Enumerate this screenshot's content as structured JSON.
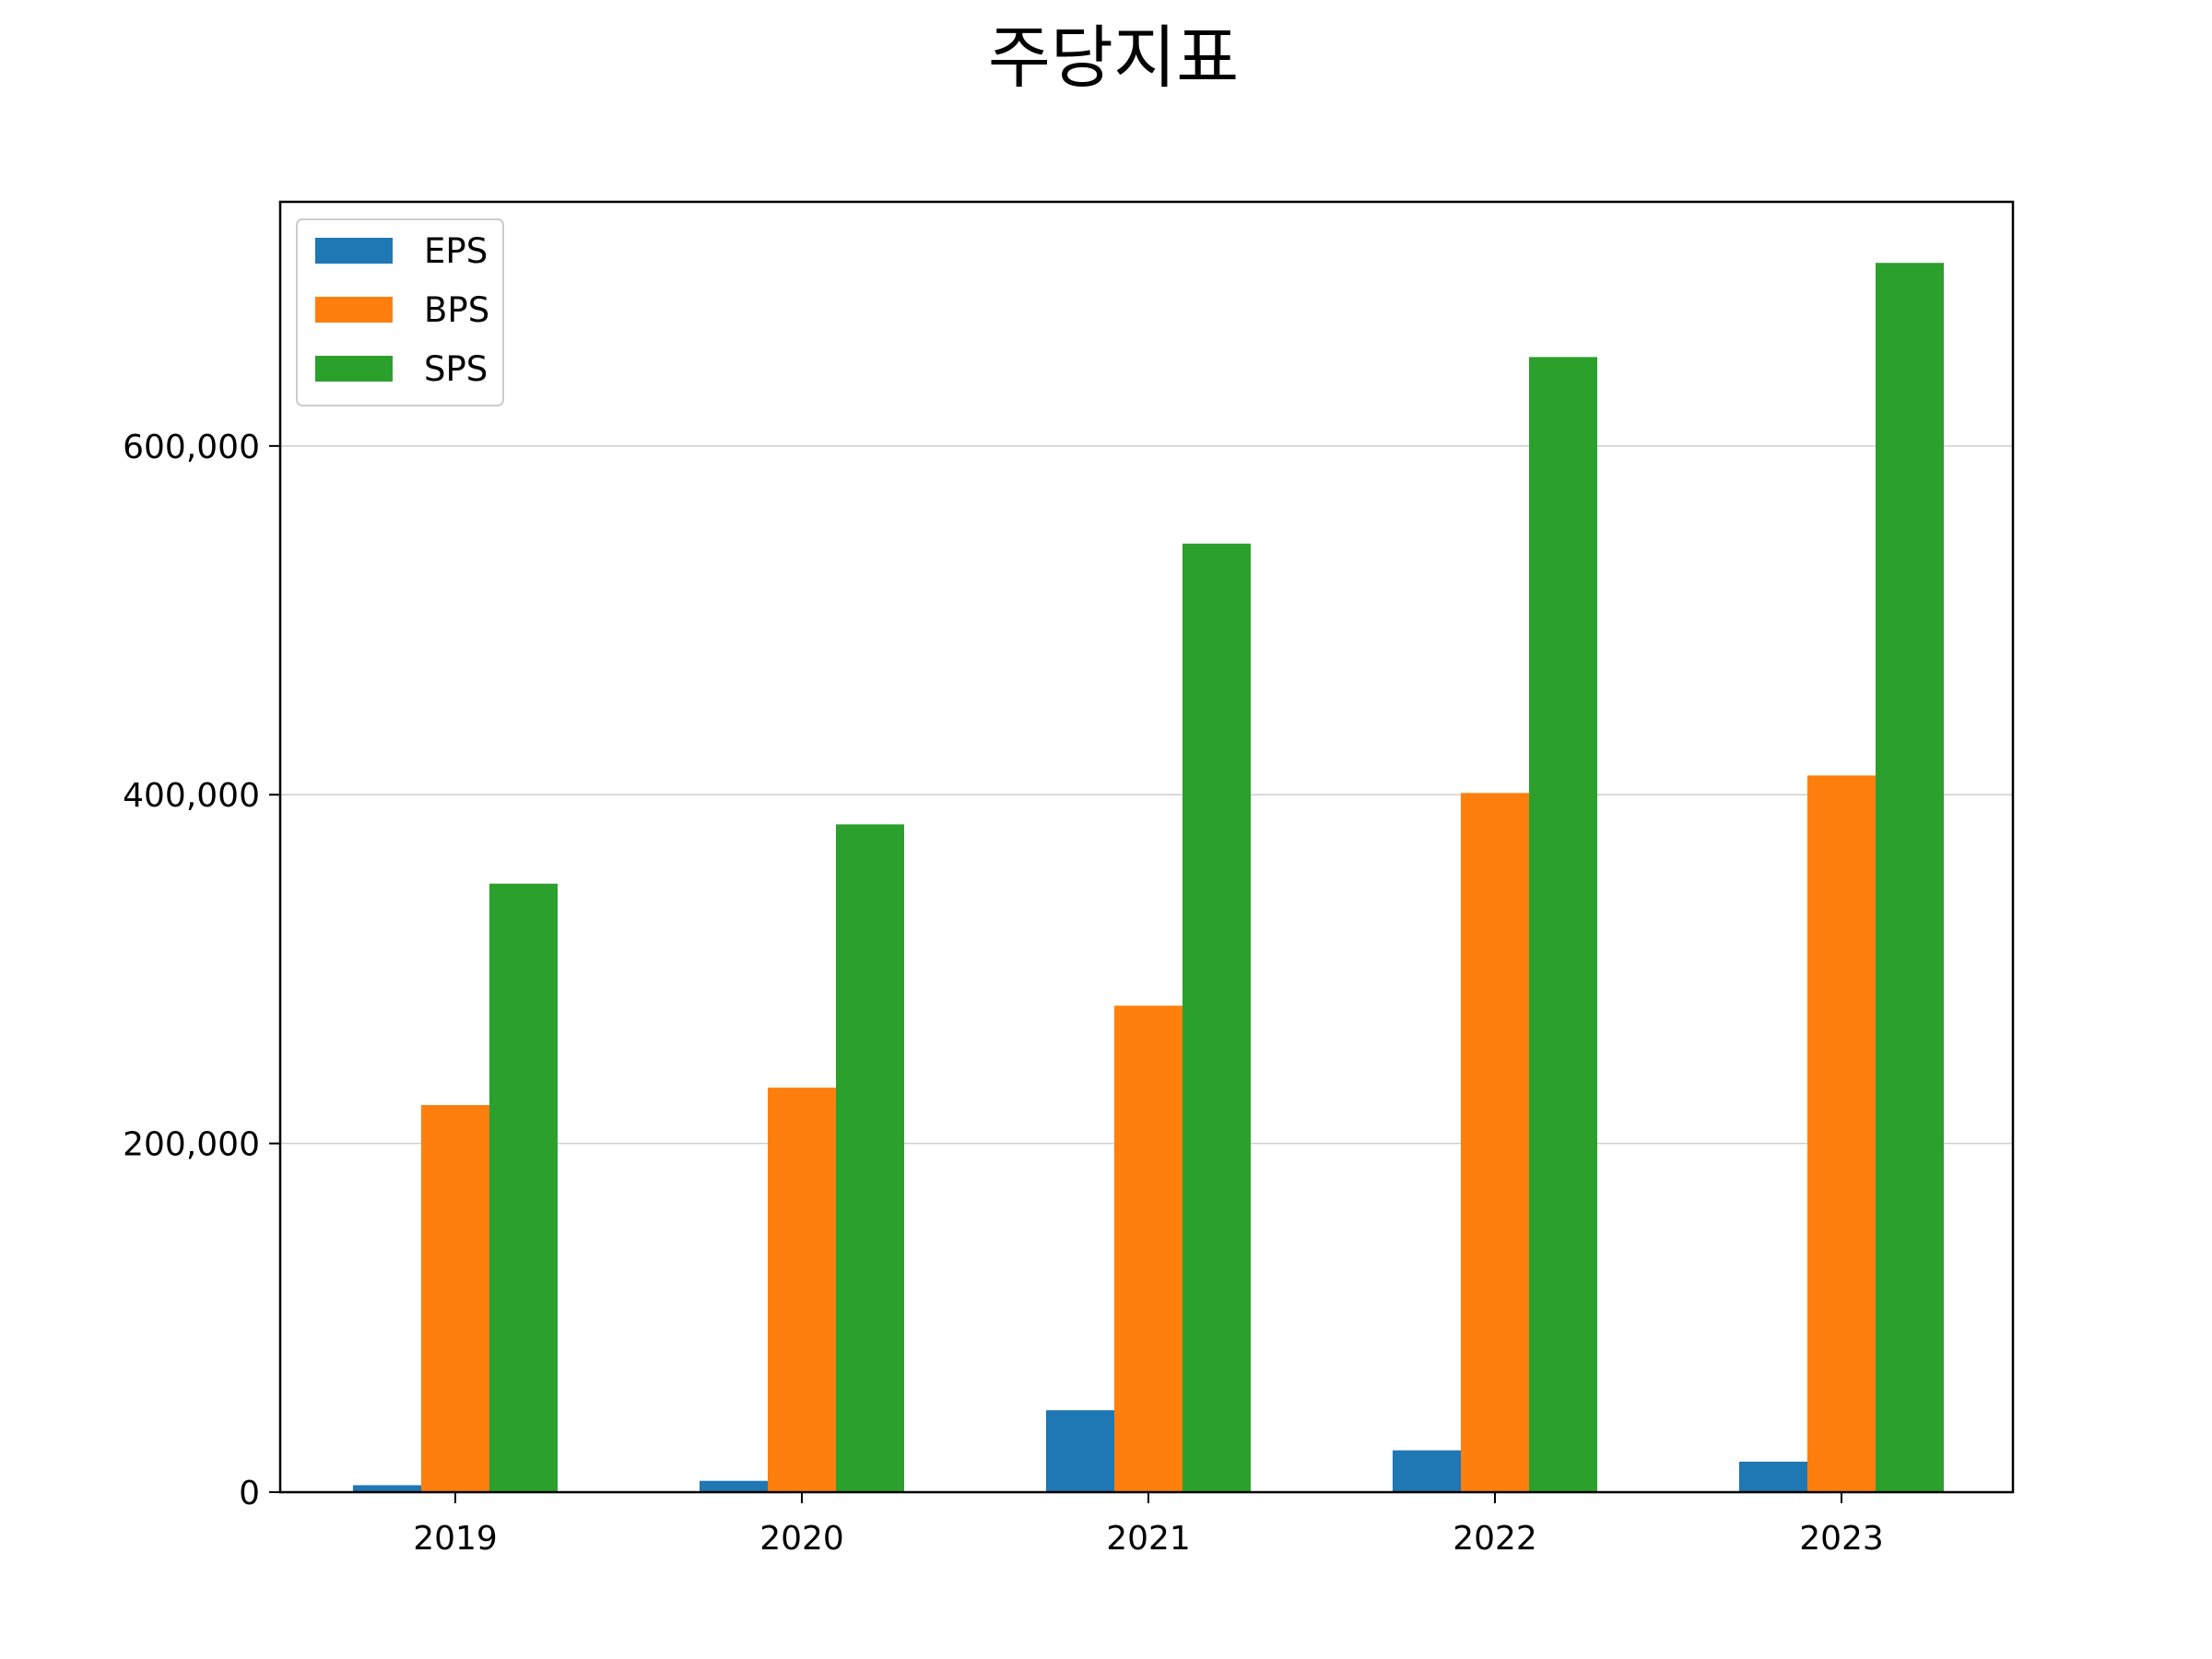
{
  "chart_data": {
    "type": "bar",
    "title": "주당지표",
    "xlabel": "",
    "ylabel": "",
    "categories": [
      "2019",
      "2020",
      "2021",
      "2022",
      "2023"
    ],
    "series": [
      {
        "name": "EPS",
        "color": "#1f77b4",
        "values": [
          4000,
          6500,
          47000,
          24000,
          17500
        ]
      },
      {
        "name": "BPS",
        "color": "#ff7f0e",
        "values": [
          222000,
          232000,
          279000,
          401000,
          411000
        ]
      },
      {
        "name": "SPS",
        "color": "#2ca02c",
        "values": [
          349000,
          383000,
          544000,
          651000,
          705000
        ]
      }
    ],
    "ylim": [
      0,
      740000
    ],
    "yticks": [
      0,
      200000,
      400000,
      600000
    ],
    "ytick_labels": [
      "0",
      "200,000",
      "400,000",
      "600,000"
    ],
    "grid": "y",
    "legend_position": "upper-left"
  }
}
